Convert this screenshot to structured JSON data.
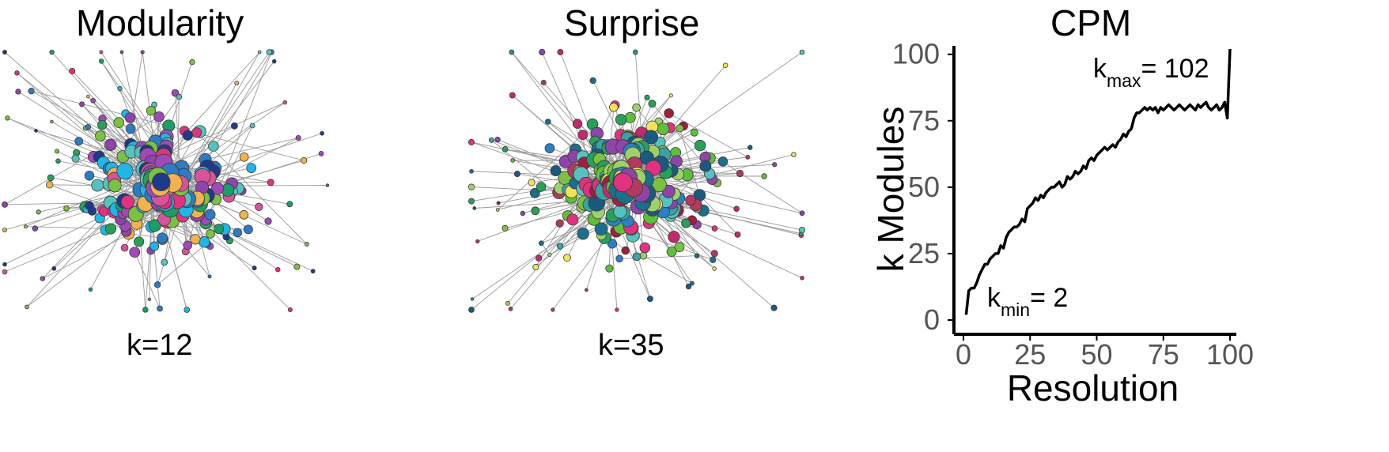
{
  "networks": [
    {
      "title": "Modularity",
      "k_label": "k=12",
      "palette": [
        "#f2b24d",
        "#8e44a8",
        "#1a9e63",
        "#2e7bc4",
        "#e0327e",
        "#56c2bd",
        "#7cc142",
        "#1fb6e8",
        "#1e3a8a",
        "#d8549a",
        "#27a05a",
        "#a04ab8"
      ]
    },
    {
      "title": "Surprise",
      "k_label": "k=35",
      "palette": [
        "#7cc142",
        "#5fbf3a",
        "#a31d3d",
        "#c7286a",
        "#2b7fc4",
        "#1c6f8a",
        "#56c2bd",
        "#8e44a8",
        "#e0327e",
        "#f0e35a",
        "#27a05a",
        "#1a5a80",
        "#9ed16a",
        "#b13a5e",
        "#3aa3a3"
      ]
    }
  ],
  "chart_data": {
    "type": "line",
    "title": "CPM",
    "xlabel": "Resolution",
    "ylabel": "k Modules",
    "xlim": [
      0,
      100
    ],
    "ylim": [
      0,
      102
    ],
    "xticks": [
      0,
      25,
      50,
      75,
      100
    ],
    "yticks": [
      0,
      25,
      50,
      75,
      100
    ],
    "annotations": [
      {
        "main": "k",
        "sub": "max",
        "rest": "= 102",
        "x": 100,
        "y": 102
      },
      {
        "main": "k",
        "sub": "min",
        "rest": "= 2",
        "x": 1,
        "y": 2
      }
    ],
    "series": [
      {
        "x": [
          1,
          2,
          3,
          4,
          5,
          6,
          7,
          8,
          9,
          10,
          11,
          12,
          13,
          14,
          15,
          16,
          17,
          18,
          19,
          20,
          21,
          22,
          23,
          24,
          25,
          26,
          27,
          28,
          29,
          30,
          31,
          32,
          33,
          34,
          35,
          36,
          37,
          38,
          39,
          40,
          41,
          42,
          43,
          44,
          45,
          46,
          47,
          48,
          49,
          50,
          51,
          52,
          53,
          54,
          55,
          56,
          57,
          58,
          59,
          60,
          61,
          62,
          63,
          64,
          65,
          66,
          67,
          68,
          69,
          70,
          71,
          72,
          73,
          74,
          75,
          76,
          77,
          78,
          79,
          80,
          81,
          82,
          83,
          84,
          85,
          86,
          87,
          88,
          89,
          90,
          91,
          92,
          93,
          94,
          95,
          96,
          97,
          98,
          99,
          100
        ],
        "y": [
          2,
          11,
          12,
          12,
          14,
          17,
          19,
          21,
          21,
          23,
          24,
          25,
          25,
          28,
          27,
          31,
          33,
          34,
          35,
          35,
          36,
          38,
          37,
          42,
          43,
          44,
          46,
          45,
          47,
          46,
          48,
          49,
          50,
          50,
          51,
          52,
          50,
          51,
          54,
          53,
          54,
          56,
          55,
          56,
          58,
          57,
          60,
          61,
          60,
          62,
          63,
          64,
          65,
          64,
          65,
          66,
          65,
          67,
          68,
          70,
          69,
          71,
          72,
          76,
          78,
          78,
          79,
          80,
          79,
          80,
          79,
          80,
          78,
          80,
          79,
          80,
          81,
          80,
          79,
          80,
          81,
          80,
          79,
          80,
          81,
          80,
          79,
          81,
          80,
          81,
          82,
          80,
          79,
          80,
          81,
          79,
          80,
          82,
          76,
          102
        ]
      }
    ]
  }
}
